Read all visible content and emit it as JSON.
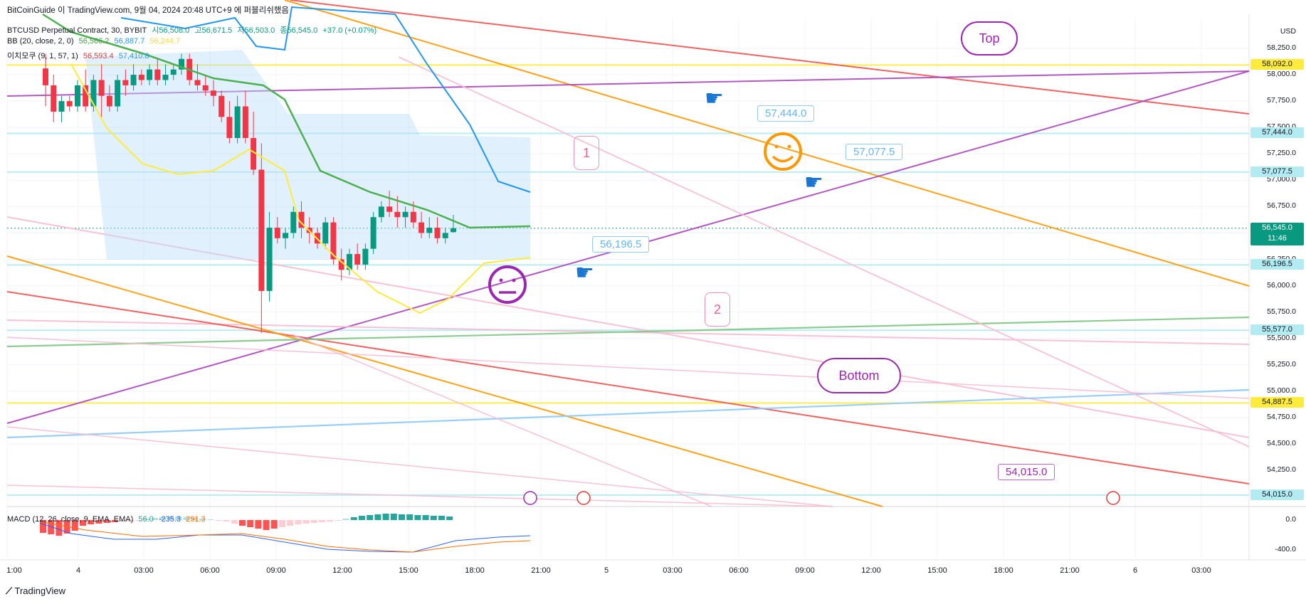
{
  "header": {
    "source": "BitCoinGuide 이 TradingView.com, 9월 04, 2024 20:48 UTC+9 에 퍼블리쉬했음",
    "symbol": "BTCUSD Perpetual Contract, 30, BYBIT",
    "ohlc": [
      "시56,508.0",
      "고56,671.5",
      "저56,503.0",
      "종56,545.0",
      "+37.0 (+0.07%)"
    ],
    "bb_title": "BB (20, close, 2, 0)",
    "bb_values": [
      "56,566.2",
      "56,887.7",
      "56,244.7"
    ],
    "ichimoku_title": "이치모쿠 (9, 1, 57, 1)",
    "ichimoku_values": [
      "56,593.4",
      "57,410.8"
    ]
  },
  "currency": "USD",
  "price_labels": [
    "58,250.0",
    "58,000.0",
    "57,750.0",
    "57,500.0",
    "57,250.0",
    "57,000.0",
    "56,750.0",
    "56,250.0",
    "56,000.0",
    "55,750.0",
    "55,500.0",
    "55,250.0",
    "55,000.0",
    "54,750.0",
    "54,500.0",
    "54,250.0"
  ],
  "price_badges": [
    {
      "text": "58,092.0",
      "color": "#ffeb3b",
      "value": 58092
    },
    {
      "text": "57,444.0",
      "color": "#b2ebf2",
      "value": 57444
    },
    {
      "text": "57,077.5",
      "color": "#b2ebf2",
      "value": 57077.5
    },
    {
      "text": "56,196.5",
      "color": "#b2ebf2",
      "value": 56196.5
    },
    {
      "text": "55,577.0",
      "color": "#b2ebf2",
      "value": 55577
    },
    {
      "text": "54,887.5",
      "color": "#ffeb3b",
      "value": 54887.5
    },
    {
      "text": "54,015.0",
      "color": "#b2ebf2",
      "value": 54015
    }
  ],
  "last_price": {
    "text": "56,545.0",
    "countdown": "11:46",
    "color": "#089981"
  },
  "time_labels": [
    "1:00",
    "4",
    "03:00",
    "06:00",
    "09:00",
    "12:00",
    "15:00",
    "18:00",
    "21:00",
    "5",
    "03:00",
    "06:00",
    "09:00",
    "12:00",
    "15:00",
    "18:00",
    "21:00",
    "6",
    "03:00"
  ],
  "macd": {
    "title": "MACD (12, 26, close, 9, EMA, EMA)",
    "values": [
      "56.0",
      "-235.3",
      "291.3"
    ],
    "axis": [
      "0.0",
      "-400.0"
    ]
  },
  "annotations": {
    "top": "Top",
    "bottom": "Bottom",
    "c1": "57,444.0",
    "c2": "57,077.5",
    "c3": "56,196.5",
    "c4": "54,015.0",
    "n1": "1",
    "n2": "2"
  },
  "footer": "TradingView",
  "chart_data": {
    "type": "candlestick",
    "title": "BTCUSD Perpetual Contract, 30, BYBIT",
    "y_range": [
      53950,
      58400
    ],
    "series": [
      {
        "name": "BTCUSD",
        "values": [
          [
            58060,
            58200,
            57700,
            57900
          ],
          [
            57900,
            58000,
            57550,
            57650
          ],
          [
            57650,
            57800,
            57550,
            57750
          ],
          [
            57750,
            57800,
            57650,
            57700
          ],
          [
            57700,
            57950,
            57650,
            57900
          ],
          [
            57900,
            58050,
            57650,
            57700
          ],
          [
            57700,
            58000,
            57650,
            57950
          ],
          [
            57950,
            58100,
            57600,
            57800
          ],
          [
            57800,
            57900,
            57650,
            57700
          ],
          [
            57700,
            58000,
            57650,
            57950
          ],
          [
            57950,
            58050,
            57800,
            57900
          ],
          [
            57900,
            58100,
            57850,
            58000
          ],
          [
            58000,
            58050,
            57900,
            57950
          ],
          [
            57950,
            58100,
            57900,
            58050
          ],
          [
            58050,
            58150,
            57900,
            57950
          ],
          [
            57950,
            58100,
            57900,
            58000
          ],
          [
            58000,
            58100,
            57950,
            58050
          ],
          [
            58050,
            58200,
            58000,
            58150
          ],
          [
            58150,
            58200,
            57900,
            57950
          ],
          [
            57950,
            58100,
            57850,
            57900
          ],
          [
            57900,
            58000,
            57800,
            57850
          ],
          [
            57850,
            57950,
            57700,
            57800
          ],
          [
            57800,
            57850,
            57550,
            57600
          ],
          [
            57600,
            57750,
            57350,
            57400
          ],
          [
            57400,
            57800,
            57350,
            57700
          ],
          [
            57700,
            57850,
            57350,
            57400
          ],
          [
            57400,
            57650,
            57050,
            57100
          ],
          [
            57100,
            57350,
            55550,
            55950
          ],
          [
            55950,
            56700,
            55850,
            56550
          ],
          [
            56550,
            56650,
            56400,
            56450
          ],
          [
            56450,
            56550,
            56350,
            56500
          ],
          [
            56500,
            56750,
            56450,
            56700
          ],
          [
            56700,
            56800,
            56450,
            56550
          ],
          [
            56550,
            56650,
            56400,
            56500
          ],
          [
            56500,
            56550,
            56350,
            56400
          ],
          [
            56400,
            56650,
            56350,
            56600
          ],
          [
            56600,
            56650,
            56200,
            56250
          ],
          [
            56250,
            56350,
            56050,
            56150
          ],
          [
            56150,
            56350,
            56100,
            56300
          ],
          [
            56300,
            56400,
            56150,
            56200
          ],
          [
            56200,
            56400,
            56150,
            56350
          ],
          [
            56350,
            56700,
            56300,
            56650
          ],
          [
            56650,
            56800,
            56600,
            56750
          ],
          [
            56750,
            56900,
            56650,
            56700
          ],
          [
            56700,
            56850,
            56550,
            56650
          ],
          [
            56650,
            56750,
            56550,
            56700
          ],
          [
            56700,
            56800,
            56550,
            56600
          ],
          [
            56600,
            56700,
            56450,
            56500
          ],
          [
            56500,
            56650,
            56450,
            56550
          ],
          [
            56550,
            56650,
            56400,
            56450
          ],
          [
            56450,
            56550,
            56400,
            56500
          ],
          [
            56508,
            56671.5,
            56503,
            56545
          ]
        ]
      }
    ]
  }
}
